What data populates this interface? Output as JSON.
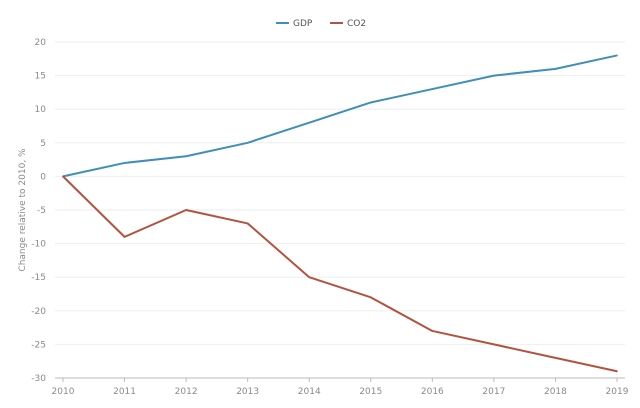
{
  "chart_data": {
    "type": "line",
    "title": "",
    "xlabel": "",
    "ylabel": "Change relative to 2010, %",
    "x": [
      2010,
      2011,
      2012,
      2013,
      2014,
      2015,
      2016,
      2017,
      2018,
      2019
    ],
    "x_tick_labels": [
      "2010",
      "2011",
      "2012",
      "2013",
      "2014",
      "2015",
      "2016",
      "2017",
      "2018",
      "2019"
    ],
    "ylim": [
      -30,
      20
    ],
    "y_ticks": [
      20,
      15,
      10,
      5,
      0,
      -5,
      -10,
      -15,
      -20,
      -25,
      -30
    ],
    "y_tick_labels": [
      "20",
      "15",
      "10",
      "5",
      "0",
      "-5",
      "-10",
      "-15",
      "-20",
      "-25",
      "-30"
    ],
    "grid": true,
    "legend_position": "top-center",
    "series": [
      {
        "name": "GDP",
        "color": "#3f8fb9",
        "values": [
          0,
          2,
          3,
          5,
          8,
          11,
          13,
          15,
          16,
          18
        ]
      },
      {
        "name": "CO2",
        "color": "#b3533d",
        "values": [
          0,
          -9,
          -5,
          -7,
          -15,
          -18,
          -23,
          -25,
          -27,
          -29
        ]
      }
    ]
  }
}
